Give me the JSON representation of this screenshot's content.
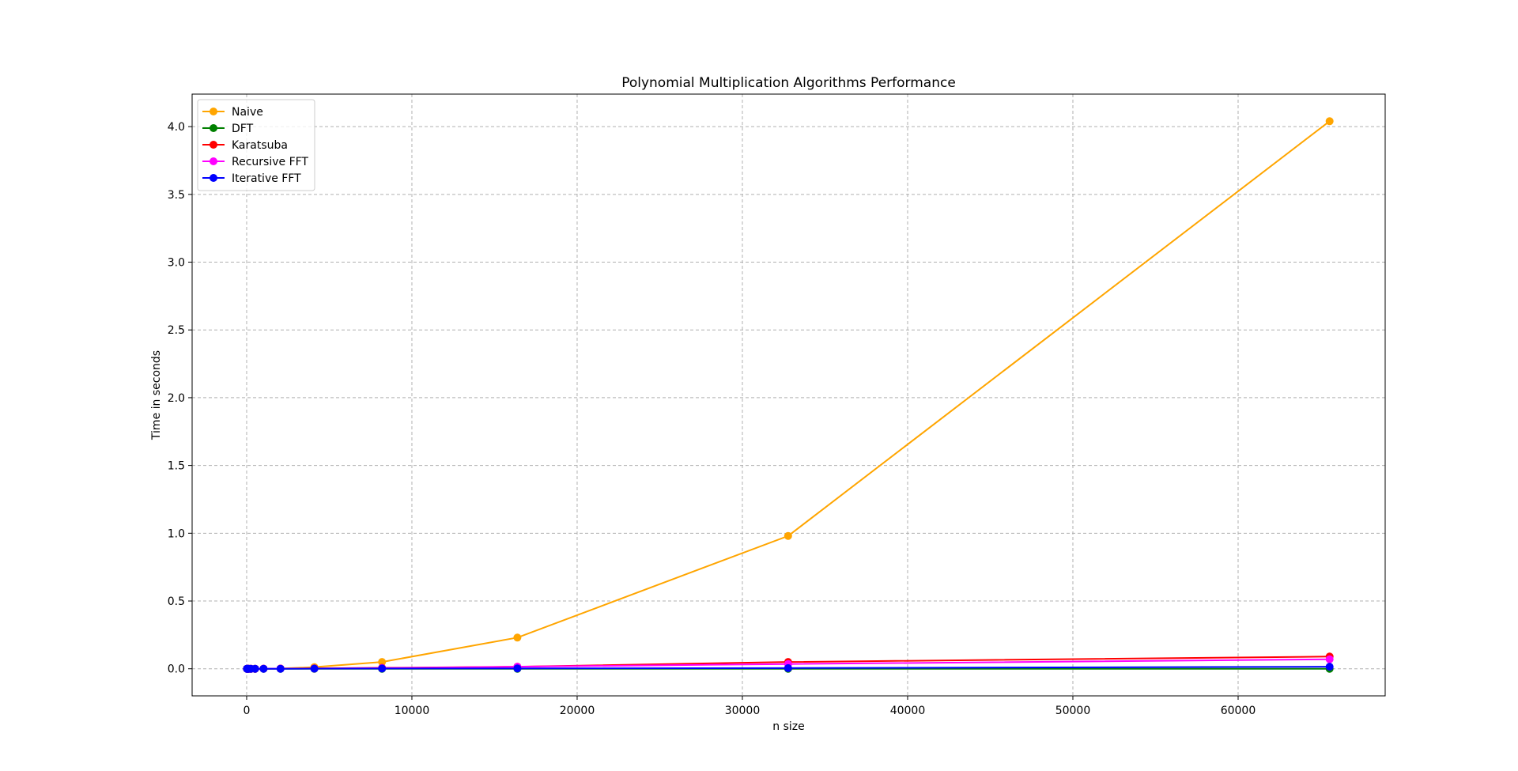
{
  "chart_data": {
    "type": "line",
    "title": "Polynomial Multiplication Algorithms Performance",
    "xlabel": "n size",
    "ylabel": "Time in seconds",
    "xlim": [
      -3300,
      68900
    ],
    "ylim": [
      -0.2,
      4.24
    ],
    "xticks": [
      0,
      10000,
      20000,
      30000,
      40000,
      50000,
      60000
    ],
    "yticks": [
      0.0,
      0.5,
      1.0,
      1.5,
      2.0,
      2.5,
      3.0,
      3.5,
      4.0
    ],
    "xtick_labels": [
      "0",
      "10000",
      "20000",
      "30000",
      "40000",
      "50000",
      "60000"
    ],
    "ytick_labels": [
      "0.0",
      "0.5",
      "1.0",
      "1.5",
      "2.0",
      "2.5",
      "3.0",
      "3.5",
      "4.0"
    ],
    "grid": true,
    "legend_position": "top-left",
    "x": [
      16,
      32,
      64,
      128,
      256,
      512,
      1024,
      2048,
      4096,
      8192,
      16384,
      32768,
      65536
    ],
    "series": [
      {
        "name": "Naive",
        "color": "#ffa500",
        "values": [
          0,
          0,
          0,
          0,
          0,
          0,
          0.0005,
          0.002,
          0.012,
          0.05,
          0.23,
          0.98,
          4.04
        ]
      },
      {
        "name": "DFT",
        "color": "#008000",
        "values": [
          0,
          0,
          0,
          0,
          0,
          0,
          0,
          0,
          0,
          0,
          0,
          0,
          0
        ]
      },
      {
        "name": "Karatsuba",
        "color": "#ff0000",
        "values": [
          0,
          0,
          0,
          0,
          0,
          0,
          0.0005,
          0.001,
          0.003,
          0.007,
          0.015,
          0.05,
          0.09
        ]
      },
      {
        "name": "Recursive FFT",
        "color": "#ff00ff",
        "values": [
          0,
          0,
          0,
          0,
          0,
          0,
          0.0005,
          0.001,
          0.002,
          0.005,
          0.015,
          0.035,
          0.07
        ]
      },
      {
        "name": "Iterative FFT",
        "color": "#0000ff",
        "values": [
          0,
          0,
          0,
          0,
          0,
          0,
          0,
          0,
          0.001,
          0.002,
          0.003,
          0.005,
          0.015
        ]
      }
    ]
  }
}
